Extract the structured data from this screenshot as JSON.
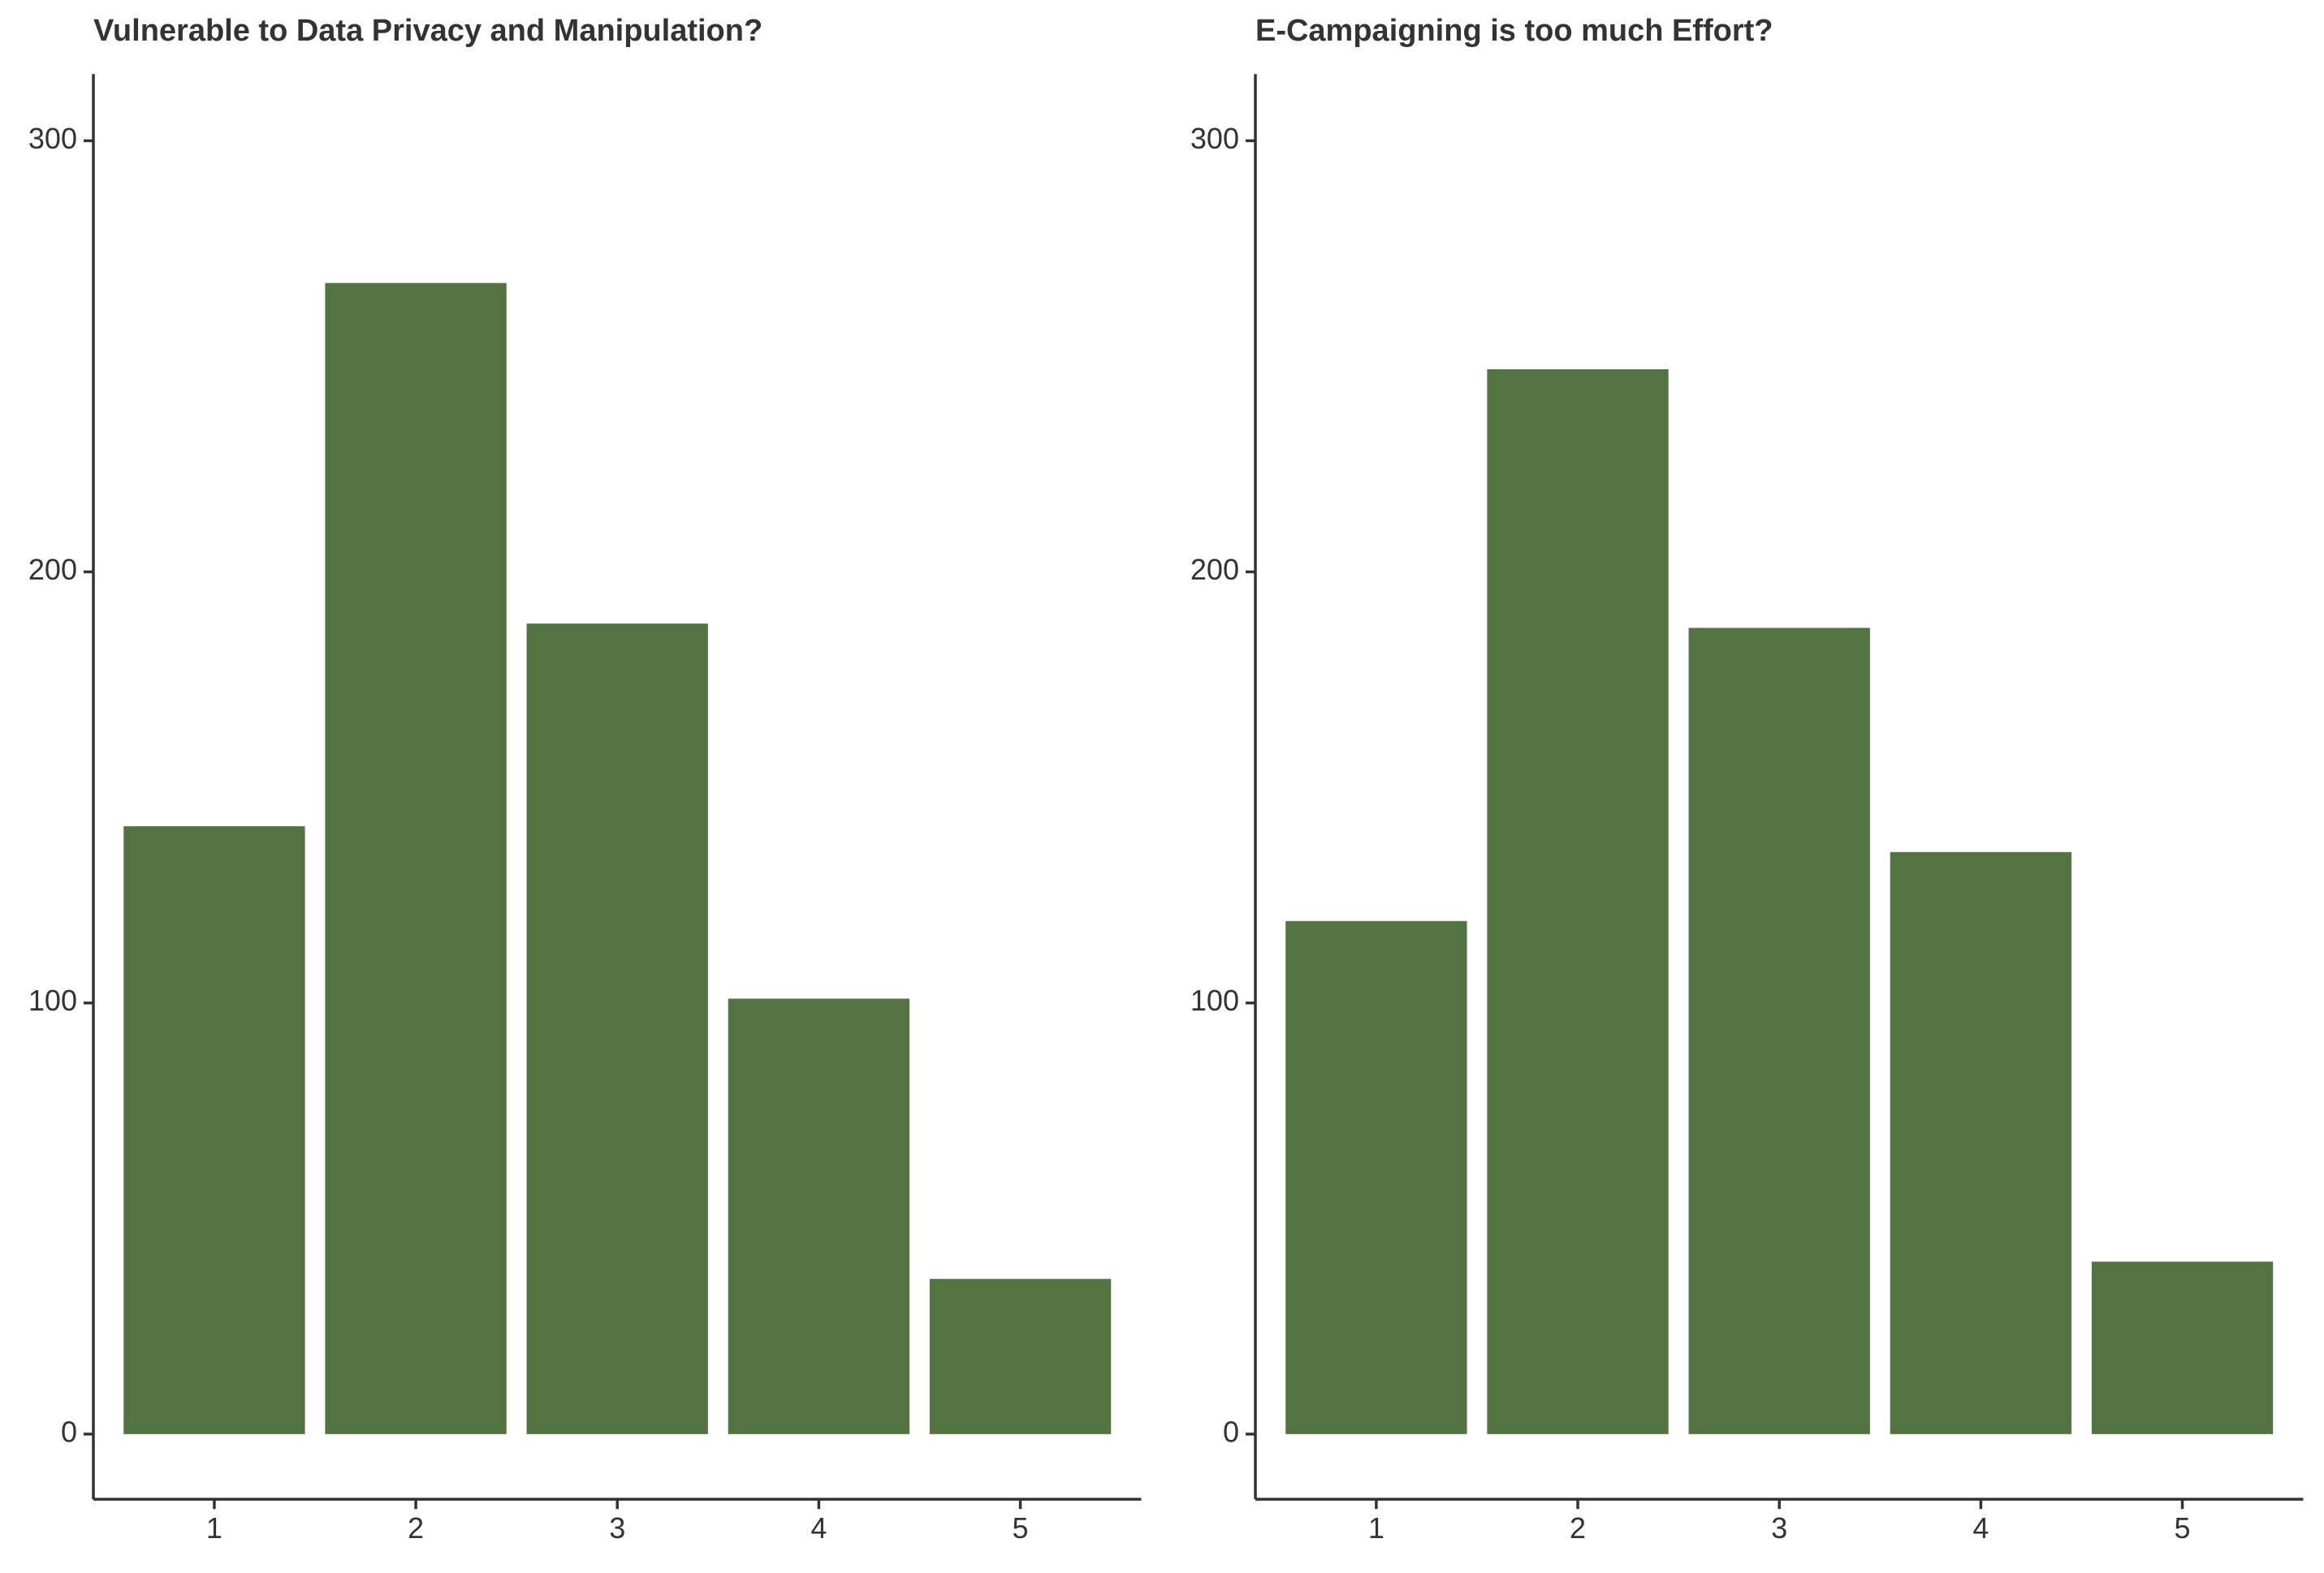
{
  "chart_data": [
    {
      "type": "bar",
      "title": "Vulnerable to Data Privacy and Manipulation?",
      "xlabel": "",
      "ylabel": "",
      "categories": [
        "1",
        "2",
        "3",
        "4",
        "5"
      ],
      "values": [
        141,
        267,
        188,
        101,
        36
      ],
      "ylim": [
        0,
        315
      ],
      "yticks": [
        "0",
        "100",
        "200",
        "300"
      ],
      "grid": false,
      "legend": "none"
    },
    {
      "type": "bar",
      "title": "E-Campaigning is too much Effort?",
      "xlabel": "",
      "ylabel": "",
      "categories": [
        "1",
        "2",
        "3",
        "4",
        "5"
      ],
      "values": [
        119,
        247,
        187,
        135,
        40
      ],
      "ylim": [
        0,
        315
      ],
      "yticks": [
        "0",
        "100",
        "200",
        "300"
      ],
      "grid": false,
      "legend": "none"
    }
  ],
  "colors": {
    "bar": "#537342",
    "axis": "#333333",
    "text": "#333333",
    "background": "#ffffff"
  }
}
